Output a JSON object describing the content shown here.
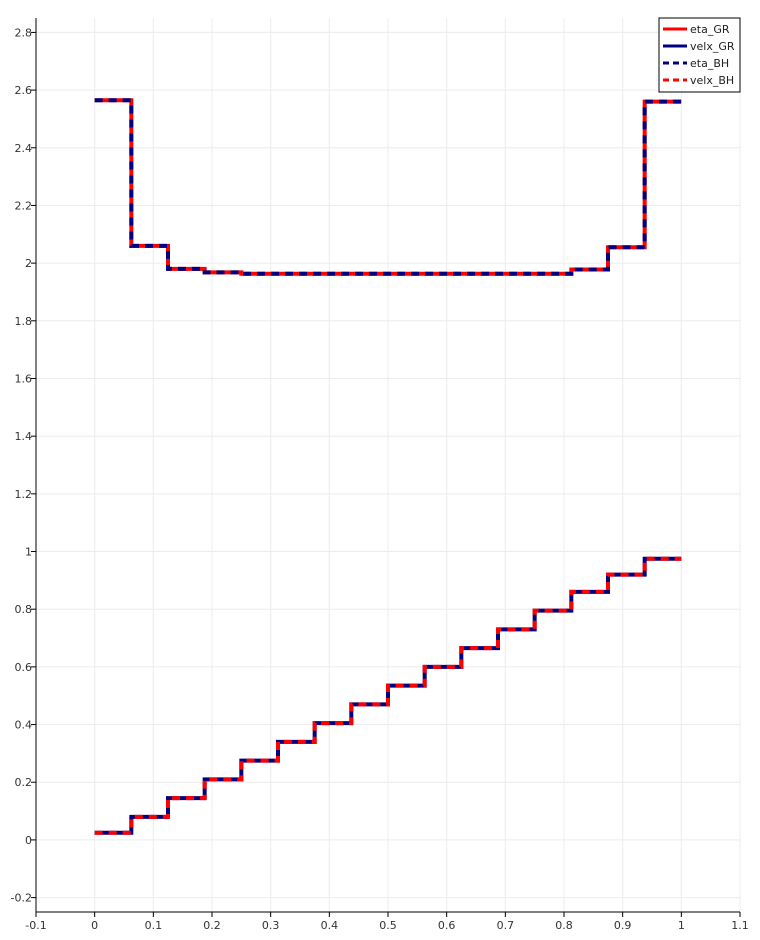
{
  "chart_data": {
    "type": "line",
    "title": "",
    "xlabel": "",
    "ylabel": "",
    "xlim": [
      -0.1,
      1.1
    ],
    "ylim": [
      -0.25,
      2.85
    ],
    "grid": true,
    "legend_position": "top-right",
    "x_ticks": [
      -0.1,
      0,
      0.1,
      0.2,
      0.3,
      0.4,
      0.5,
      0.6,
      0.7,
      0.8,
      0.9,
      1,
      1.1
    ],
    "x_tick_labels": [
      "-0.1",
      "0",
      "0.1",
      "0.2",
      "0.3",
      "0.4",
      "0.5",
      "0.6",
      "0.7",
      "0.8",
      "0.9",
      "1",
      "1.1"
    ],
    "y_ticks": [
      -0.2,
      0,
      0.2,
      0.4,
      0.6,
      0.8,
      1,
      1.2,
      1.4,
      1.6,
      1.8,
      2,
      2.2,
      2.4,
      2.6,
      2.8
    ],
    "y_tick_labels": [
      "-0.2",
      "0",
      "0.2",
      "0.4",
      "0.6",
      "0.8",
      "1",
      "1.2",
      "1.4",
      "1.6",
      "1.8",
      "2",
      "2.2",
      "2.4",
      "2.6",
      "2.8"
    ],
    "series": [
      {
        "name": "eta_GR",
        "color": "#ff0000",
        "dash": "solid",
        "x": [
          0,
          0.0625,
          0.0625,
          0.125,
          0.125,
          0.1875,
          0.1875,
          0.25,
          0.25,
          0.8125,
          0.8125,
          0.875,
          0.875,
          0.9375,
          0.9375,
          1
        ],
        "y": [
          2.565,
          2.565,
          2.06,
          2.06,
          1.98,
          1.98,
          1.968,
          1.968,
          1.963,
          1.963,
          1.978,
          1.978,
          2.055,
          2.055,
          2.56,
          2.56
        ]
      },
      {
        "name": "velx_GR",
        "color": "#000080",
        "dash": "solid",
        "x": [
          0,
          0.0625,
          0.0625,
          0.125,
          0.125,
          0.1875,
          0.1875,
          0.25,
          0.25,
          0.3125,
          0.3125,
          0.375,
          0.375,
          0.4375,
          0.4375,
          0.5,
          0.5,
          0.5625,
          0.5625,
          0.625,
          0.625,
          0.6875,
          0.6875,
          0.75,
          0.75,
          0.8125,
          0.8125,
          0.875,
          0.875,
          0.9375,
          0.9375,
          1
        ],
        "y": [
          0.025,
          0.025,
          0.08,
          0.08,
          0.145,
          0.145,
          0.21,
          0.21,
          0.275,
          0.275,
          0.34,
          0.34,
          0.405,
          0.405,
          0.47,
          0.47,
          0.535,
          0.535,
          0.6,
          0.6,
          0.665,
          0.665,
          0.73,
          0.73,
          0.795,
          0.795,
          0.86,
          0.86,
          0.92,
          0.92,
          0.975,
          0.975
        ]
      },
      {
        "name": "eta_BH",
        "color": "#000080",
        "dash": "dashed",
        "x": [
          0,
          0.0625,
          0.0625,
          0.125,
          0.125,
          0.1875,
          0.1875,
          0.25,
          0.25,
          0.8125,
          0.8125,
          0.875,
          0.875,
          0.9375,
          0.9375,
          1
        ],
        "y": [
          2.565,
          2.565,
          2.06,
          2.06,
          1.98,
          1.98,
          1.968,
          1.968,
          1.963,
          1.963,
          1.978,
          1.978,
          2.055,
          2.055,
          2.56,
          2.56
        ]
      },
      {
        "name": "velx_BH",
        "color": "#ff0000",
        "dash": "dashed",
        "x": [
          0,
          0.0625,
          0.0625,
          0.125,
          0.125,
          0.1875,
          0.1875,
          0.25,
          0.25,
          0.3125,
          0.3125,
          0.375,
          0.375,
          0.4375,
          0.4375,
          0.5,
          0.5,
          0.5625,
          0.5625,
          0.625,
          0.625,
          0.6875,
          0.6875,
          0.75,
          0.75,
          0.8125,
          0.8125,
          0.875,
          0.875,
          0.9375,
          0.9375,
          1
        ],
        "y": [
          0.025,
          0.025,
          0.08,
          0.08,
          0.145,
          0.145,
          0.21,
          0.21,
          0.275,
          0.275,
          0.34,
          0.34,
          0.405,
          0.405,
          0.47,
          0.47,
          0.535,
          0.535,
          0.6,
          0.6,
          0.665,
          0.665,
          0.73,
          0.73,
          0.795,
          0.795,
          0.86,
          0.86,
          0.92,
          0.92,
          0.975,
          0.975
        ]
      }
    ]
  }
}
